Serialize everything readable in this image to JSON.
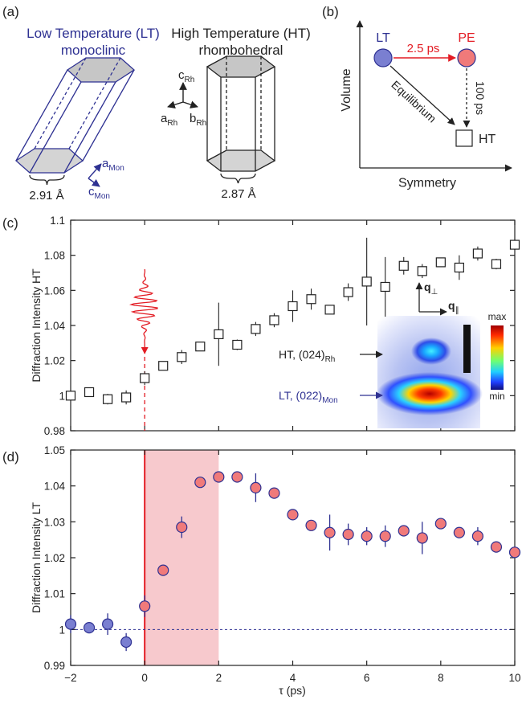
{
  "panels": {
    "a": {
      "label": "(a)",
      "lt_title_1": "Low Temperature (LT)",
      "lt_title_2": "monoclinic",
      "ht_title_1": "High Temperature (HT)",
      "ht_title_2": "rhombohedral",
      "lt_width": "2.91 Å",
      "ht_width": "2.87 Å",
      "axes_mon": {
        "a": "a",
        "c": "c",
        "sub": "Mon"
      },
      "axes_rh": {
        "a": "a",
        "b": "b",
        "c": "c",
        "sub": "Rh"
      }
    },
    "b": {
      "label": "(b)",
      "lt": "LT",
      "pe": "PE",
      "ht": "HT",
      "time_fast": "2.5 ps",
      "time_slow": "100 ps",
      "equilibrium": "Equilibrium",
      "xlabel": "Symmetry",
      "ylabel": "Volume"
    },
    "c": {
      "label": "(c)"
    },
    "d": {
      "label": "(d)"
    }
  },
  "inset": {
    "ht_label": "HT, (024)",
    "ht_sub": "Rh",
    "lt_label": "LT, (022)",
    "lt_sub": "Mon",
    "cbar_max": "max",
    "cbar_min": "min",
    "q_perp": "q",
    "q_par": "q"
  },
  "colors": {
    "lt_blue": "#2e3192",
    "marker_blue": "#7a7fd1",
    "pe_red": "#f07a7a",
    "pump_red": "#e31c24",
    "shade": "#f7c9cd"
  },
  "chart_data": [
    {
      "type": "scatter",
      "panel": "c",
      "marker": "open-square",
      "xlim": [
        -2,
        10
      ],
      "ylim": [
        0.98,
        1.1
      ],
      "xticks": [
        -2,
        0,
        2,
        4,
        6,
        8,
        10
      ],
      "yticks": [
        0.98,
        1,
        1.02,
        1.04,
        1.06,
        1.08,
        1.1
      ],
      "ytick_labels": [
        "0.98",
        "1",
        "1.02",
        "1.04",
        "1.06",
        "1.08",
        "1.1"
      ],
      "ylabel": "Diffraction Intensity HT",
      "points": [
        {
          "x": -2.0,
          "y": 1.0,
          "err": 0.003
        },
        {
          "x": -1.5,
          "y": 1.002,
          "err": 0.002
        },
        {
          "x": -1.0,
          "y": 0.998,
          "err": 0.003
        },
        {
          "x": -0.5,
          "y": 0.999,
          "err": 0.004
        },
        {
          "x": 0.0,
          "y": 1.01,
          "err": 0.004
        },
        {
          "x": 0.5,
          "y": 1.017,
          "err": 0.002
        },
        {
          "x": 1.0,
          "y": 1.022,
          "err": 0.004
        },
        {
          "x": 1.5,
          "y": 1.028,
          "err": 0.002
        },
        {
          "x": 2.0,
          "y": 1.035,
          "err": 0.018
        },
        {
          "x": 2.5,
          "y": 1.029,
          "err": 0.003
        },
        {
          "x": 3.0,
          "y": 1.038,
          "err": 0.004
        },
        {
          "x": 3.5,
          "y": 1.043,
          "err": 0.004
        },
        {
          "x": 4.0,
          "y": 1.051,
          "err": 0.009
        },
        {
          "x": 4.5,
          "y": 1.055,
          "err": 0.006
        },
        {
          "x": 5.0,
          "y": 1.049,
          "err": 0.002
        },
        {
          "x": 5.5,
          "y": 1.059,
          "err": 0.005
        },
        {
          "x": 6.0,
          "y": 1.065,
          "err": 0.025
        },
        {
          "x": 6.5,
          "y": 1.062,
          "err": 0.017
        },
        {
          "x": 7.0,
          "y": 1.074,
          "err": 0.005
        },
        {
          "x": 7.5,
          "y": 1.071,
          "err": 0.004
        },
        {
          "x": 8.0,
          "y": 1.076,
          "err": 0.002
        },
        {
          "x": 8.5,
          "y": 1.073,
          "err": 0.007
        },
        {
          "x": 9.0,
          "y": 1.081,
          "err": 0.004
        },
        {
          "x": 9.5,
          "y": 1.075,
          "err": 0.003
        },
        {
          "x": 10.0,
          "y": 1.086,
          "err": 0.003
        }
      ]
    },
    {
      "type": "scatter",
      "panel": "d",
      "marker": "filled-circle",
      "xlim": [
        -2,
        10
      ],
      "ylim": [
        0.99,
        1.05
      ],
      "xticks": [
        -2,
        0,
        2,
        4,
        6,
        8,
        10
      ],
      "xtick_labels": [
        "−2",
        "0",
        "2",
        "4",
        "6",
        "8",
        "10"
      ],
      "yticks": [
        0.99,
        1,
        1.01,
        1.02,
        1.03,
        1.04,
        1.05
      ],
      "ytick_labels": [
        "0.99",
        "1",
        "1.01",
        "1.02",
        "1.03",
        "1.04",
        "1.05"
      ],
      "xlabel": "τ (ps)",
      "ylabel": "Diffraction Intensity LT",
      "baseline": 1.0,
      "shaded_region": [
        0,
        2
      ],
      "points": [
        {
          "x": -2.0,
          "y": 1.0015,
          "err": 0.0025,
          "group": "LT"
        },
        {
          "x": -1.5,
          "y": 1.0005,
          "err": 0.0015,
          "group": "LT"
        },
        {
          "x": -1.0,
          "y": 1.0015,
          "err": 0.003,
          "group": "LT"
        },
        {
          "x": -0.5,
          "y": 0.9965,
          "err": 0.0025,
          "group": "LT"
        },
        {
          "x": 0.0,
          "y": 1.0065,
          "err": 0.003,
          "group": "PE"
        },
        {
          "x": 0.5,
          "y": 1.0165,
          "err": 0.0015,
          "group": "PE"
        },
        {
          "x": 1.0,
          "y": 1.0285,
          "err": 0.003,
          "group": "PE"
        },
        {
          "x": 1.5,
          "y": 1.041,
          "err": 0.0015,
          "group": "PE"
        },
        {
          "x": 2.0,
          "y": 1.0425,
          "err": 0.0015,
          "group": "PE"
        },
        {
          "x": 2.5,
          "y": 1.0425,
          "err": 0.0015,
          "group": "PE"
        },
        {
          "x": 3.0,
          "y": 1.0395,
          "err": 0.004,
          "group": "PE"
        },
        {
          "x": 3.5,
          "y": 1.038,
          "err": 0.0015,
          "group": "PE"
        },
        {
          "x": 4.0,
          "y": 1.032,
          "err": 0.0015,
          "group": "PE"
        },
        {
          "x": 4.5,
          "y": 1.029,
          "err": 0.0015,
          "group": "PE"
        },
        {
          "x": 5.0,
          "y": 1.027,
          "err": 0.005,
          "group": "PE"
        },
        {
          "x": 5.5,
          "y": 1.0265,
          "err": 0.003,
          "group": "PE"
        },
        {
          "x": 6.0,
          "y": 1.026,
          "err": 0.0025,
          "group": "PE"
        },
        {
          "x": 6.5,
          "y": 1.026,
          "err": 0.003,
          "group": "PE"
        },
        {
          "x": 7.0,
          "y": 1.0275,
          "err": 0.0015,
          "group": "PE"
        },
        {
          "x": 7.5,
          "y": 1.0255,
          "err": 0.0045,
          "group": "PE"
        },
        {
          "x": 8.0,
          "y": 1.0295,
          "err": 0.0015,
          "group": "PE"
        },
        {
          "x": 8.5,
          "y": 1.027,
          "err": 0.0015,
          "group": "PE"
        },
        {
          "x": 9.0,
          "y": 1.026,
          "err": 0.0025,
          "group": "PE"
        },
        {
          "x": 9.5,
          "y": 1.023,
          "err": 0.0015,
          "group": "PE"
        },
        {
          "x": 10.0,
          "y": 1.0215,
          "err": 0.0015,
          "group": "PE"
        }
      ]
    }
  ]
}
